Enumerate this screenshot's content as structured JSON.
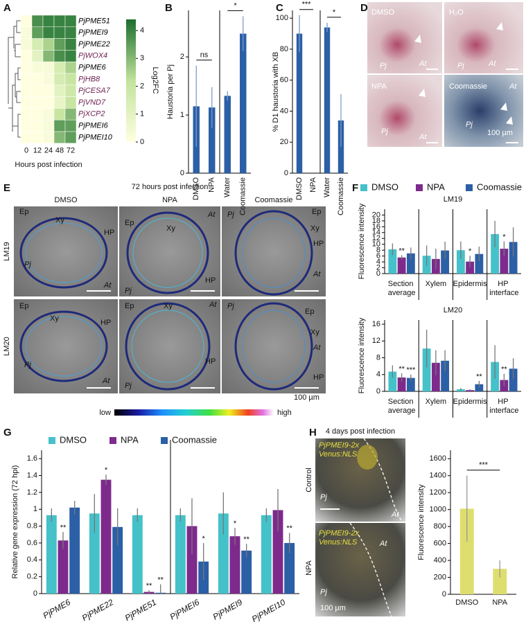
{
  "panel_letters": [
    "A",
    "B",
    "C",
    "D",
    "E",
    "F",
    "G",
    "H"
  ],
  "chart_data": [
    {
      "type": "heatmap",
      "rows": [
        "PjPME51",
        "PjPMEI9",
        "PjPME22",
        "PjWOX4",
        "PjPME6",
        "PjHB8",
        "PjCESA7",
        "PjVND7",
        "PjXCP2",
        "PjPMEI6",
        "PjPMEI10"
      ],
      "row_label_colors": [
        "#000000",
        "#000000",
        "#000000",
        "#6b1f4f",
        "#000000",
        "#6b1f4f",
        "#6b1f4f",
        "#6b1f4f",
        "#6b1f4f",
        "#000000",
        "#000000"
      ],
      "columns": [
        0,
        12,
        24,
        48,
        72
      ],
      "values": [
        [
          0,
          3.8,
          4,
          4,
          4
        ],
        [
          0.2,
          3.5,
          4,
          4,
          4
        ],
        [
          0.3,
          1.5,
          2.5,
          3.5,
          4
        ],
        [
          0,
          1,
          3,
          3.8,
          4
        ],
        [
          0,
          0.2,
          0.3,
          1.5,
          2.5
        ],
        [
          0,
          0,
          0.2,
          1.5,
          2
        ],
        [
          0,
          0,
          0,
          1,
          1.8
        ],
        [
          0,
          0,
          0,
          0.8,
          2
        ],
        [
          0,
          0,
          0.2,
          2,
          3
        ],
        [
          0,
          0,
          0.3,
          3.5,
          3.5
        ],
        [
          0,
          0,
          0.2,
          3,
          3.5
        ]
      ],
      "zlim": [
        0,
        4.4
      ],
      "colorbar_ticks": [
        0,
        1,
        2,
        3,
        4
      ],
      "colors": [
        "#ffffe0",
        "#c2e39c",
        "#1b6e2e"
      ],
      "colorbar_label": "Log2FC",
      "xlabel": "Hours post infection"
    },
    {
      "type": "bar",
      "categories": [
        "DMSO",
        "NPA",
        "Water",
        "Coomassie"
      ],
      "values": [
        1.15,
        1.13,
        1.33,
        2.4
      ],
      "errors": [
        0.7,
        0.35,
        0.08,
        0.3
      ],
      "color": "#2b5fa6",
      "ylim": [
        0,
        2.8
      ],
      "yticks": [
        0,
        1,
        2
      ],
      "ylabel": "Haustoria per Pj",
      "annotations": [
        {
          "text": "ns",
          "from": 0,
          "to": 1
        },
        {
          "text": "*",
          "from": 2,
          "to": 3
        }
      ]
    },
    {
      "type": "bar",
      "categories": [
        "DMSO",
        "NPA",
        "Water",
        "Coomassie"
      ],
      "values": [
        90,
        0,
        94,
        34
      ],
      "errors": [
        12,
        0,
        3,
        17
      ],
      "color": "#2b5fa6",
      "ylim": [
        0,
        105
      ],
      "yticks": [
        0,
        20,
        40,
        60,
        80,
        100
      ],
      "ylabel": "% D1 haustoria with XB",
      "annotations": [
        {
          "text": "***",
          "from": 0,
          "to": 1
        },
        {
          "text": "*",
          "from": 2,
          "to": 3
        }
      ]
    },
    {
      "type": "bar",
      "title": "LM19",
      "categories": [
        "Section average",
        "Xylem",
        "Epidermis",
        "HP interface"
      ],
      "series": [
        {
          "name": "DMSO",
          "color": "#45c1c9",
          "values": [
            8.3,
            6.1,
            8,
            13.5
          ],
          "errors": [
            2,
            3.5,
            3,
            4.5
          ]
        },
        {
          "name": "NPA",
          "color": "#7e2a8c",
          "values": [
            5.5,
            5,
            4.1,
            8.5
          ],
          "errors": [
            0.8,
            3.5,
            2,
            2.5
          ]
        },
        {
          "name": "Coomassie",
          "color": "#2b5fa6",
          "values": [
            6.9,
            7.9,
            6.7,
            10.8
          ],
          "errors": [
            2,
            3,
            2.5,
            5
          ]
        }
      ],
      "ylim": [
        0,
        22
      ],
      "yticks": [
        0,
        2,
        4,
        6,
        8,
        10,
        12,
        14,
        16,
        18,
        20
      ],
      "ylabel": "Fluorescence intensity",
      "annotations": [
        {
          "text": "**",
          "series": 1,
          "category": 0
        },
        {
          "text": "*",
          "series": 1,
          "category": 2
        },
        {
          "text": "*",
          "series": 1,
          "category": 3
        }
      ]
    },
    {
      "type": "bar",
      "title": "LM20",
      "categories": [
        "Section average",
        "Xylem",
        "Epidermis",
        "HP interface"
      ],
      "series": [
        {
          "color": "#45c1c9",
          "values": [
            4.7,
            10.2,
            0.5,
            7
          ],
          "errors": [
            1.5,
            4.5,
            0.3,
            4
          ]
        },
        {
          "color": "#7e2a8c",
          "values": [
            3.3,
            6.8,
            0.3,
            2.7
          ],
          "errors": [
            1,
            3,
            0.2,
            1.5
          ]
        },
        {
          "color": "#2b5fa6",
          "values": [
            3.2,
            7.3,
            1.7,
            5.4
          ],
          "errors": [
            0.8,
            2.5,
            0.8,
            2.5
          ]
        }
      ],
      "ylim": [
        0,
        17
      ],
      "yticks": [
        0,
        4,
        8,
        12,
        16
      ],
      "ylabel": "Fluorescence intensity",
      "annotations": [
        {
          "text": "**",
          "series": 1,
          "category": 0
        },
        {
          "text": "***",
          "series": 2,
          "category": 0
        },
        {
          "text": "**",
          "series": 2,
          "category": 2
        },
        {
          "text": "**",
          "series": 1,
          "category": 3
        }
      ]
    },
    {
      "type": "bar",
      "categories": [
        "PjPME6",
        "PjPME22",
        "PjPME51",
        "PjPMEI6",
        "PjPMEI9",
        "PjPMEI10"
      ],
      "series": [
        {
          "name": "DMSO",
          "color": "#45c1c9",
          "values": [
            0.93,
            0.95,
            0.93,
            0.93,
            0.95,
            0.93
          ],
          "errors": [
            0.08,
            0.23,
            0.08,
            0.08,
            0.25,
            0.08
          ]
        },
        {
          "name": "NPA",
          "color": "#7e2a8c",
          "values": [
            0.63,
            1.35,
            0.02,
            0.8,
            0.68,
            0.99
          ],
          "errors": [
            0.1,
            0.06,
            0.02,
            0.33,
            0.1,
            0.25
          ]
        },
        {
          "name": "Coomassie",
          "color": "#2b5fa6",
          "values": [
            1.02,
            0.79,
            0.01,
            0.38,
            0.51,
            0.6
          ],
          "errors": [
            0.08,
            0.22,
            0.1,
            0.22,
            0.08,
            0.12
          ]
        }
      ],
      "ylim": [
        0,
        1.7
      ],
      "yticks": [
        0,
        0.2,
        0.4,
        0.6,
        0.8,
        1,
        1.2,
        1.4,
        1.6
      ],
      "ylabel": "Relative gene expression (72 hpi)",
      "annotations": [
        {
          "text": "**",
          "series": 1,
          "category": 0
        },
        {
          "text": "*",
          "series": 1,
          "category": 1
        },
        {
          "text": "**",
          "series": 1,
          "category": 2
        },
        {
          "text": "**",
          "series": 2,
          "category": 2
        },
        {
          "text": "*",
          "series": 2,
          "category": 3
        },
        {
          "text": "*",
          "series": 1,
          "category": 4
        },
        {
          "text": "**",
          "series": 2,
          "category": 4
        },
        {
          "text": "**",
          "series": 2,
          "category": 5
        }
      ]
    },
    {
      "type": "bar",
      "categories": [
        "DMSO",
        "NPA"
      ],
      "values": [
        1010,
        300
      ],
      "errors": [
        390,
        100
      ],
      "color": "#dede6e",
      "ylim": [
        0,
        1700
      ],
      "yticks": [
        0,
        200,
        400,
        600,
        800,
        1000,
        1200,
        1400,
        1600
      ],
      "ylabel": "Fluorescence intensity",
      "annotations": [
        {
          "text": "***",
          "from": 0,
          "to": 1
        }
      ]
    }
  ],
  "micrographs": {
    "D": [
      [
        "DMSO",
        "Pj",
        "At"
      ],
      [
        "H₂O",
        "Pj",
        "At"
      ],
      [
        "NPA",
        "Pj",
        "At"
      ],
      [
        "Coomassie",
        "At",
        "Pj",
        "100 µm"
      ]
    ],
    "E": {
      "title": "72 hours post infection",
      "columns": [
        "DMSO",
        "NPA",
        "Coomassie"
      ],
      "rows": [
        "LM19",
        "LM20"
      ],
      "images": [
        [
          "Ep",
          "Xy",
          "HP",
          "Pj",
          "At"
        ],
        [
          "Ep",
          "Xy",
          "At",
          "HP",
          "Pj"
        ],
        [
          "Pj",
          "Ep",
          "Xy",
          "HP",
          "At"
        ],
        [
          "Ep",
          "Xy",
          "HP",
          "Pj",
          "At"
        ],
        [
          "Ep",
          "Xy",
          "At",
          "Pj",
          "HP"
        ],
        [
          "Pj",
          "Ep",
          "Xy",
          "At",
          "HP"
        ]
      ],
      "scale": "100 µm",
      "colorbar": [
        "low",
        "high"
      ]
    },
    "H": {
      "title": "4 days post infection",
      "rows": [
        "Control",
        "NPA"
      ],
      "images": [
        [
          "PjPMEI9-2x",
          "Venus:NLS",
          "Pj",
          "At"
        ],
        [
          "PjPMEI9-2x",
          "Venus:NLS",
          "At",
          "Pj",
          "100 µm"
        ]
      ]
    }
  }
}
